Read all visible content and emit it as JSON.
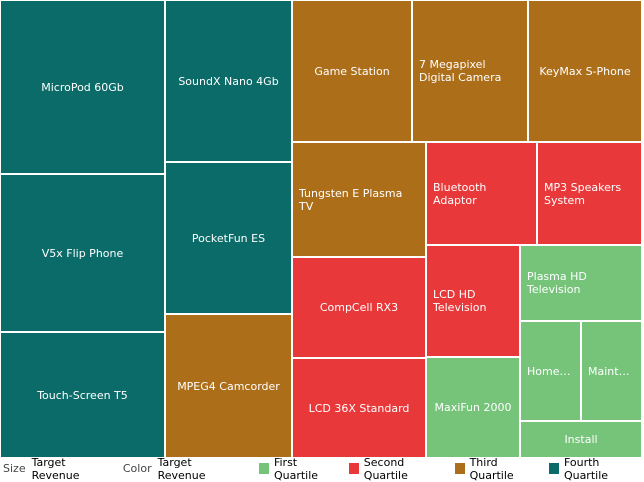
{
  "chart_data": {
    "type": "treemap",
    "size_measure": "Target Revenue",
    "color_measure": "Target Revenue",
    "quartile_colors": {
      "First Quartile": "#76c47a",
      "Second Quartile": "#e8383a",
      "Third Quartile": "#ad6e1a",
      "Fourth Quartile": "#0a6b68"
    },
    "items": [
      {
        "name": "MicroPod 60Gb",
        "quartile": "Fourth Quartile"
      },
      {
        "name": "V5x Flip Phone",
        "quartile": "Fourth Quartile"
      },
      {
        "name": "Touch-Screen T5",
        "quartile": "Fourth Quartile"
      },
      {
        "name": "SoundX Nano 4Gb",
        "quartile": "Fourth Quartile"
      },
      {
        "name": "PocketFun ES",
        "quartile": "Fourth Quartile"
      },
      {
        "name": "MPEG4 Camcorder",
        "quartile": "Third Quartile"
      },
      {
        "name": "Game Station",
        "quartile": "Third Quartile"
      },
      {
        "name": "7 Megapixel Digital Camera",
        "quartile": "Third Quartile"
      },
      {
        "name": "KeyMax S-Phone",
        "quartile": "Third Quartile"
      },
      {
        "name": "Tungsten E Plasma TV",
        "quartile": "Third Quartile"
      },
      {
        "name": "Bluetooth Adaptor",
        "quartile": "Second Quartile"
      },
      {
        "name": "MP3 Speakers System",
        "quartile": "Second Quartile"
      },
      {
        "name": "CompCell RX3",
        "quartile": "Second Quartile"
      },
      {
        "name": "LCD HD Television",
        "quartile": "Second Quartile"
      },
      {
        "name": "LCD 36X Standard",
        "quartile": "Second Quartile"
      },
      {
        "name": "Plasma HD Television",
        "quartile": "First Quartile"
      },
      {
        "name": "MaxiFun 2000",
        "quartile": "First Quartile"
      },
      {
        "name": "HomeCo...",
        "quartile": "First Quartile"
      },
      {
        "name": "Mainten...",
        "quartile": "First Quartile"
      },
      {
        "name": "Install",
        "quartile": "First Quartile"
      }
    ]
  },
  "footer": {
    "size_label": "Size",
    "size_value": "Target Revenue",
    "color_label": "Color",
    "color_value": "Target Revenue"
  },
  "legend": [
    {
      "label": "First Quartile",
      "color": "#76c47a"
    },
    {
      "label": "Second Quartile",
      "color": "#e8383a"
    },
    {
      "label": "Third Quartile",
      "color": "#ad6e1a"
    },
    {
      "label": "Fourth Quartile",
      "color": "#0a6b68"
    }
  ]
}
